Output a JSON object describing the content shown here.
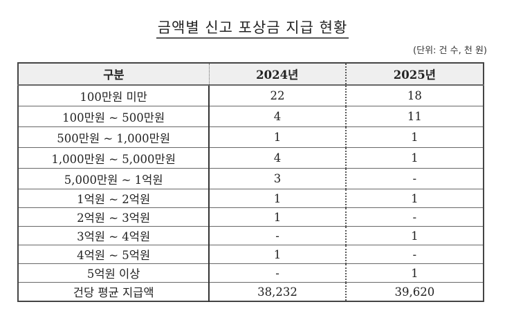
{
  "title": "금액별 신고 포상금 지급 현황",
  "unit": "(단위: 건 수, 천 원)",
  "table": {
    "headers": [
      "구분",
      "2024년",
      "2025년"
    ],
    "rows": [
      {
        "label": "100만원 미만",
        "y2024": "22",
        "y2025": "18"
      },
      {
        "label": "100만원 ~ 500만원",
        "y2024": "4",
        "y2025": "11"
      },
      {
        "label": "500만원 ~ 1,000만원",
        "y2024": "1",
        "y2025": "1"
      },
      {
        "label": "1,000만원 ~ 5,000만원",
        "y2024": "4",
        "y2025": "1"
      },
      {
        "label": "5,000만원 ~ 1억원",
        "y2024": "3",
        "y2025": "-"
      },
      {
        "label": "1억원 ~ 2억원",
        "y2024": "1",
        "y2025": "1"
      },
      {
        "label": "2억원 ~ 3억원",
        "y2024": "1",
        "y2025": "-"
      },
      {
        "label": "3억원 ~ 4억원",
        "y2024": "-",
        "y2025": "1"
      },
      {
        "label": "4억원 ~ 5억원",
        "y2024": "1",
        "y2025": "-"
      },
      {
        "label": "5억원 이상",
        "y2024": "-",
        "y2025": "1"
      },
      {
        "label": "건당 평균 지급액",
        "y2024": "38,232",
        "y2025": "39,620"
      }
    ]
  }
}
